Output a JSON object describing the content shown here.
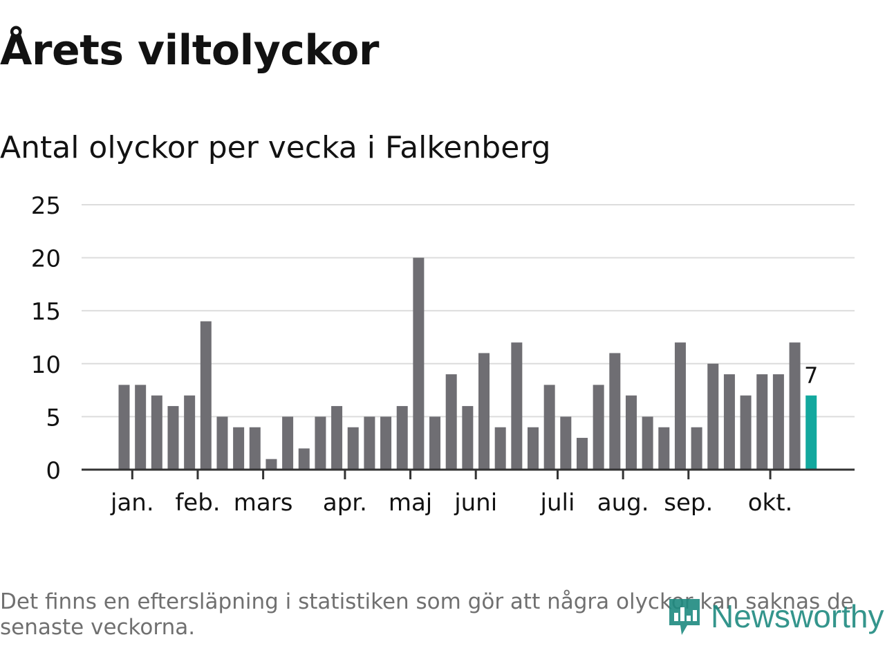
{
  "header": {
    "title": "Årets viltolyckor",
    "subtitle": "Antal olyckor per vecka i Falkenberg"
  },
  "footnote": "Det finns en eftersläpning i statistiken som gör att några olyckor kan saknas de senaste veckorna.",
  "brand": {
    "name": "Newsworthy",
    "icon": "newsworthy-logo-icon"
  },
  "colors": {
    "bar": "#6f6e73",
    "highlight": "#13a89e",
    "grid": "#dcdcdc",
    "axis": "#333333",
    "text": "#121212",
    "footnote": "#707070",
    "brand": "#1f8a80"
  },
  "chart_data": {
    "type": "bar",
    "title": "Antal olyckor per vecka i Falkenberg",
    "xlabel": "",
    "ylabel": "",
    "ylim": [
      0,
      25
    ],
    "yticks": [
      0,
      5,
      10,
      15,
      20,
      25
    ],
    "grid": true,
    "values": [
      8,
      8,
      7,
      6,
      7,
      14,
      5,
      4,
      4,
      1,
      5,
      2,
      5,
      6,
      4,
      5,
      5,
      6,
      20,
      5,
      9,
      6,
      11,
      4,
      12,
      4,
      8,
      5,
      3,
      8,
      11,
      7,
      5,
      4,
      12,
      4,
      10,
      9,
      7,
      9,
      9,
      12,
      7
    ],
    "highlight_index": 42,
    "highlight_label": "7",
    "month_ticks": [
      {
        "label": "jan.",
        "bar_index": 0.5
      },
      {
        "label": "feb.",
        "bar_index": 4.5
      },
      {
        "label": "mars",
        "bar_index": 8.5
      },
      {
        "label": "apr.",
        "bar_index": 13.5
      },
      {
        "label": "maj",
        "bar_index": 17.5
      },
      {
        "label": "juni",
        "bar_index": 21.5
      },
      {
        "label": "juli",
        "bar_index": 26.5
      },
      {
        "label": "aug.",
        "bar_index": 30.5
      },
      {
        "label": "sep.",
        "bar_index": 34.5
      },
      {
        "label": "okt.",
        "bar_index": 39.5
      }
    ]
  }
}
